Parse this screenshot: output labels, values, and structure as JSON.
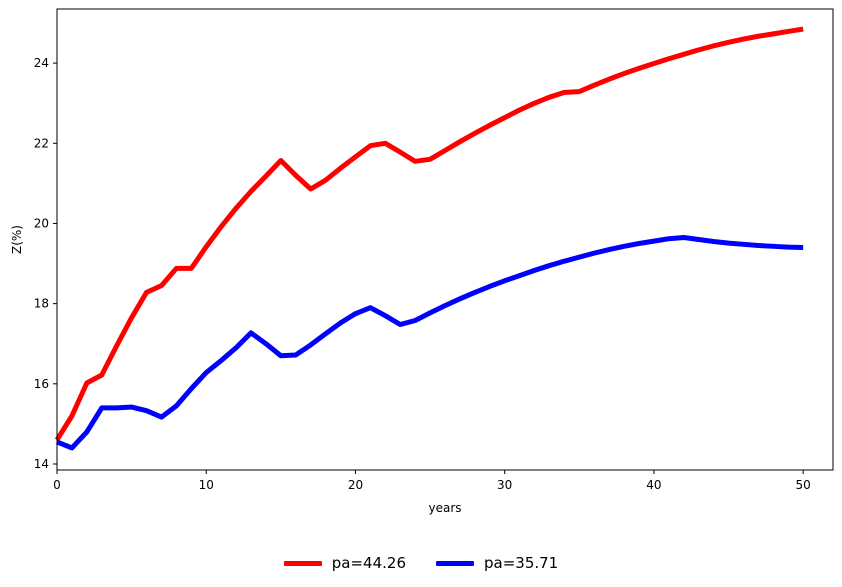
{
  "chart_data": {
    "type": "line",
    "xlabel": "years",
    "ylabel": "Z(%)",
    "xlim": [
      0,
      52
    ],
    "ylim": [
      13.85,
      25.35
    ],
    "xticks": [
      0,
      10,
      20,
      30,
      40,
      50
    ],
    "yticks": [
      14,
      16,
      18,
      20,
      22,
      24
    ],
    "grid": false,
    "legend_position": "bottom-center",
    "series": [
      {
        "name": "pa=44.26",
        "color": "#ff0000",
        "x": [
          0,
          1,
          2,
          3,
          4,
          5,
          6,
          7,
          8,
          9,
          10,
          11,
          12,
          13,
          14,
          15,
          16,
          17,
          18,
          19,
          20,
          21,
          22,
          23,
          24,
          25,
          26,
          27,
          28,
          29,
          30,
          31,
          32,
          33,
          34,
          35,
          36,
          37,
          38,
          39,
          40,
          41,
          42,
          43,
          44,
          45,
          46,
          47,
          48,
          49,
          50
        ],
        "y": [
          14.6,
          15.2,
          16.02,
          16.22,
          16.95,
          17.65,
          18.28,
          18.45,
          18.88,
          18.88,
          19.42,
          19.92,
          20.38,
          20.8,
          21.18,
          21.57,
          21.2,
          20.86,
          21.08,
          21.38,
          21.66,
          21.94,
          22.0,
          21.78,
          21.55,
          21.6,
          21.82,
          22.04,
          22.25,
          22.45,
          22.64,
          22.83,
          23.0,
          23.15,
          23.27,
          23.29,
          23.45,
          23.6,
          23.74,
          23.87,
          23.99,
          24.11,
          24.22,
          24.33,
          24.43,
          24.52,
          24.6,
          24.67,
          24.73,
          24.79,
          24.85
        ]
      },
      {
        "name": "pa=35.71",
        "color": "#0000ff",
        "x": [
          0,
          1,
          2,
          3,
          4,
          5,
          6,
          7,
          8,
          9,
          10,
          11,
          12,
          13,
          14,
          15,
          16,
          17,
          18,
          19,
          20,
          21,
          22,
          23,
          24,
          25,
          26,
          27,
          28,
          29,
          30,
          31,
          32,
          33,
          34,
          35,
          36,
          37,
          38,
          39,
          40,
          41,
          42,
          43,
          44,
          45,
          46,
          47,
          48,
          49,
          50
        ],
        "y": [
          14.55,
          14.4,
          14.8,
          15.4,
          15.4,
          15.42,
          15.33,
          15.17,
          15.45,
          15.88,
          16.28,
          16.58,
          16.9,
          17.27,
          17.0,
          16.7,
          16.72,
          16.97,
          17.25,
          17.52,
          17.75,
          17.9,
          17.7,
          17.48,
          17.58,
          17.77,
          17.95,
          18.12,
          18.28,
          18.43,
          18.57,
          18.7,
          18.83,
          18.95,
          19.06,
          19.16,
          19.26,
          19.35,
          19.43,
          19.5,
          19.56,
          19.62,
          19.65,
          19.6,
          19.55,
          19.51,
          19.48,
          19.45,
          19.43,
          19.41,
          19.4
        ]
      }
    ]
  }
}
